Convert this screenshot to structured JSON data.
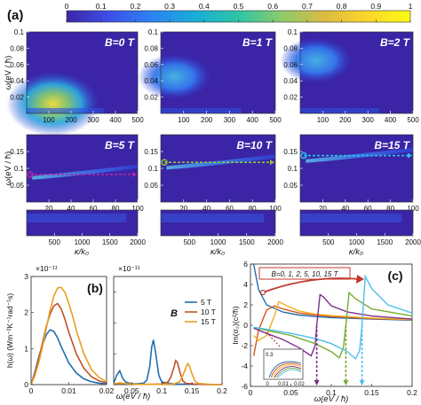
{
  "figure": {
    "panel_labels": [
      "(a)",
      "(b)",
      "(c)"
    ]
  },
  "chart_data": [
    {
      "type": "heatmap",
      "panel": "(a)",
      "colorbar": {
        "ticks": [
          "0",
          "0.1",
          "0.2",
          "0.3",
          "0.4",
          "0.5",
          "0.6",
          "0.7",
          "0.8",
          "0.9",
          "1"
        ],
        "colormap": [
          "#3d26a8",
          "#3e4fe8",
          "#2c83f2",
          "#18aed8",
          "#2ec4a4",
          "#8bcb6b",
          "#ddbb42",
          "#fbd62a",
          "#f9fb14"
        ]
      },
      "ylabel": "ω(eV / ħ)",
      "xlabel": "κ/k₀",
      "subplots": [
        {
          "label": "B=0 T",
          "xlim": [
            0,
            500
          ],
          "ylim": [
            0,
            0.1
          ],
          "xticks": [
            "100",
            "200",
            "300",
            "400",
            "500"
          ],
          "yticks": [
            "0.1",
            "0.08",
            "0.06",
            "0.04",
            "0.02"
          ],
          "peak": {
            "x": 120,
            "y": 0.012
          }
        },
        {
          "label": "B=1 T",
          "xlim": [
            0,
            500
          ],
          "ylim": [
            0,
            0.1
          ],
          "xticks": [
            "100",
            "200",
            "300",
            "400",
            "500"
          ],
          "yticks": [
            "0.1",
            "0.08",
            "0.06",
            "0.04",
            "0.02"
          ],
          "peak": {
            "x": 60,
            "y": 0.045
          }
        },
        {
          "label": "B=2 T",
          "xlim": [
            0,
            500
          ],
          "ylim": [
            0,
            0.1
          ],
          "xticks": [
            "100",
            "200",
            "300",
            "400",
            "500"
          ],
          "yticks": [
            "0.1",
            "0.08",
            "0.06",
            "0.04",
            "0.02"
          ],
          "peak": {
            "x": 70,
            "y": 0.065
          }
        },
        {
          "label": "B=5 T",
          "xlim": [
            0,
            100
          ],
          "ylim": [
            0,
            0.2
          ],
          "xticks": [
            "20",
            "40",
            "60",
            "80",
            "100"
          ],
          "yticks": [
            "0.15",
            "0.1",
            "0.05"
          ],
          "peak": {
            "x": 30,
            "y": 0.09
          },
          "marker_y": 0.082,
          "marker_color": "#b02aa8"
        },
        {
          "label": "B=10 T",
          "xlim": [
            0,
            100
          ],
          "ylim": [
            0,
            0.2
          ],
          "xticks": [
            "20",
            "40",
            "60",
            "80",
            "100"
          ],
          "yticks": [
            "0.15",
            "0.1",
            "0.05"
          ],
          "peak": {
            "x": 30,
            "y": 0.12
          },
          "marker_y": 0.118,
          "marker_color": "#8ec63f"
        },
        {
          "label": "B=15 T",
          "xlim": [
            0,
            100
          ],
          "ylim": [
            0,
            0.2
          ],
          "xticks": [
            "20",
            "40",
            "60",
            "80",
            "100"
          ],
          "yticks": [
            "0.15",
            "0.1",
            "0.05"
          ],
          "peak": {
            "x": 30,
            "y": 0.14
          },
          "marker_y": 0.138,
          "marker_color": "#29c3e8"
        },
        {
          "xlim": [
            0,
            2000
          ],
          "xticks": [
            "500",
            "1000",
            "1500",
            "2000"
          ]
        },
        {
          "xlim": [
            0,
            2000
          ],
          "xticks": [
            "500",
            "1000",
            "1500",
            "2000"
          ]
        },
        {
          "xlim": [
            0,
            2000
          ],
          "xticks": [
            "500",
            "1000",
            "1500",
            "2000"
          ]
        }
      ]
    },
    {
      "type": "line",
      "panel": "(b)",
      "ylabel": "h(ω) (Wm⁻²K⁻¹rad⁻¹s)",
      "xlabel": "ω(eV / ħ)",
      "multiplier": "×10⁻¹¹",
      "legend_title": "B",
      "left": {
        "xlim": [
          0,
          0.02
        ],
        "ylim": [
          0,
          3
        ],
        "xticks": [
          "0",
          "0.01",
          "0.02"
        ],
        "yticks": [
          "0",
          "1",
          "2",
          "3"
        ],
        "series": [
          {
            "name": "5 T",
            "color": "#1f6fb2",
            "x": [
              0,
              0.001,
              0.002,
              0.003,
              0.004,
              0.005,
              0.006,
              0.007,
              0.008,
              0.01,
              0.012,
              0.014,
              0.016,
              0.018,
              0.02
            ],
            "y": [
              0,
              0.35,
              0.75,
              1.1,
              1.38,
              1.52,
              1.48,
              1.3,
              1.05,
              0.6,
              0.32,
              0.16,
              0.08,
              0.04,
              0.02
            ]
          },
          {
            "name": "10 T",
            "color": "#c0502b",
            "x": [
              0,
              0.001,
              0.002,
              0.003,
              0.004,
              0.005,
              0.006,
              0.007,
              0.008,
              0.009,
              0.01,
              0.012,
              0.014,
              0.016,
              0.018,
              0.02
            ],
            "y": [
              0,
              0.3,
              0.7,
              1.15,
              1.6,
              1.95,
              2.18,
              2.25,
              2.1,
              1.8,
              1.45,
              0.85,
              0.45,
              0.22,
              0.1,
              0.05
            ]
          },
          {
            "name": "15 T",
            "color": "#e8a020",
            "x": [
              0,
              0.001,
              0.002,
              0.003,
              0.004,
              0.005,
              0.006,
              0.007,
              0.008,
              0.009,
              0.01,
              0.011,
              0.012,
              0.014,
              0.016,
              0.018,
              0.02
            ],
            "y": [
              0,
              0.25,
              0.6,
              1.05,
              1.55,
              2.05,
              2.45,
              2.68,
              2.7,
              2.55,
              2.25,
              1.9,
              1.5,
              0.85,
              0.42,
              0.2,
              0.08
            ]
          }
        ]
      },
      "right": {
        "xlim": [
          0.02,
          0.2
        ],
        "ylim": [
          0,
          3.5
        ],
        "xticks": [
          "0.05",
          "0.1",
          "0.15",
          "0.2"
        ],
        "yticks": [
          "0",
          "1",
          "2",
          "3"
        ],
        "series": [
          {
            "name": "5 T",
            "color": "#1f6fb2",
            "x": [
              0.02,
              0.025,
              0.03,
              0.035,
              0.04,
              0.05,
              0.06,
              0.07,
              0.075,
              0.08,
              0.083,
              0.086,
              0.09,
              0.095,
              0.1,
              0.12,
              0.15,
              0.2
            ],
            "y": [
              0.05,
              0.3,
              0.45,
              0.2,
              0.08,
              0.03,
              0.03,
              0.05,
              0.15,
              0.6,
              1.2,
              1.45,
              1.0,
              0.3,
              0.08,
              0.02,
              0.01,
              0
            ]
          },
          {
            "name": "10 T",
            "color": "#c0502b",
            "x": [
              0.02,
              0.03,
              0.04,
              0.06,
              0.08,
              0.1,
              0.11,
              0.115,
              0.12,
              0.123,
              0.126,
              0.13,
              0.135,
              0.14,
              0.16,
              0.2
            ],
            "y": [
              0.02,
              0.05,
              0.03,
              0.01,
              0.01,
              0.02,
              0.08,
              0.25,
              0.55,
              0.78,
              0.72,
              0.4,
              0.12,
              0.04,
              0.01,
              0
            ]
          },
          {
            "name": "15 T",
            "color": "#e8a020",
            "x": [
              0.02,
              0.03,
              0.04,
              0.06,
              0.08,
              0.1,
              0.12,
              0.13,
              0.135,
              0.14,
              0.143,
              0.146,
              0.15,
              0.155,
              0.16,
              0.18,
              0.2
            ],
            "y": [
              0.02,
              0.06,
              0.03,
              0.01,
              0.01,
              0.01,
              0.02,
              0.1,
              0.3,
              0.55,
              0.68,
              0.6,
              0.35,
              0.12,
              0.04,
              0.01,
              0
            ]
          }
        ]
      }
    },
    {
      "type": "line",
      "panel": "(c)",
      "ylabel": "Im(σ₂)(c²/ħ)",
      "xlabel": "ω(eV / ħ)",
      "xlim": [
        0,
        0.2
      ],
      "ylim": [
        -6,
        6
      ],
      "xticks": [
        "0",
        "0.05",
        "0.1",
        "0.15",
        "0.2"
      ],
      "yticks": [
        "6",
        "4",
        "2",
        "0",
        "-2",
        "-4",
        "-6"
      ],
      "annotation": "B=0, 1, 2, 5, 10, 15 T",
      "inset": {
        "ytick": "0.3",
        "xticks": [
          "0",
          "0.01",
          "0.02"
        ]
      },
      "marker_x": [
        0.082,
        0.118,
        0.138
      ],
      "series": [
        {
          "name": "0 T",
          "color": "#1f6fb2",
          "x": [
            0.004,
            0.01,
            0.02,
            0.04,
            0.06,
            0.08,
            0.1,
            0.15,
            0.2
          ],
          "y": [
            6,
            3.5,
            2.0,
            1.3,
            1.0,
            0.85,
            0.75,
            0.6,
            0.5
          ]
        },
        {
          "name": "1 T",
          "color": "#d9531e",
          "x": [
            0.004,
            0.01,
            0.02,
            0.03,
            0.04,
            0.06,
            0.08,
            0.1,
            0.15,
            0.2
          ],
          "y": [
            -3,
            -0.5,
            1.5,
            1.9,
            1.6,
            1.2,
            1.0,
            0.85,
            0.65,
            0.55
          ]
        },
        {
          "name": "2 T",
          "color": "#edb120",
          "x": [
            0.004,
            0.01,
            0.02,
            0.03,
            0.035,
            0.045,
            0.06,
            0.08,
            0.1,
            0.15,
            0.2
          ],
          "y": [
            -1.0,
            -1.5,
            -1.0,
            1.0,
            2.3,
            1.9,
            1.4,
            1.1,
            0.95,
            0.7,
            0.55
          ]
        },
        {
          "name": "5 T",
          "color": "#7e2f8e",
          "x": [
            0.004,
            0.02,
            0.04,
            0.06,
            0.075,
            0.08,
            0.082,
            0.086,
            0.09,
            0.1,
            0.12,
            0.15,
            0.2
          ],
          "y": [
            -0.3,
            -0.8,
            -1.4,
            -2.2,
            -3.0,
            -2.0,
            0.0,
            3.0,
            2.8,
            1.9,
            1.3,
            0.9,
            0.6
          ]
        },
        {
          "name": "10 T",
          "color": "#77ac30",
          "x": [
            0.004,
            0.02,
            0.05,
            0.08,
            0.1,
            0.11,
            0.115,
            0.118,
            0.122,
            0.13,
            0.15,
            0.2
          ],
          "y": [
            -0.2,
            -0.5,
            -1.0,
            -1.8,
            -2.6,
            -3.2,
            -2.2,
            0.0,
            3.2,
            2.6,
            1.6,
            0.9
          ]
        },
        {
          "name": "15 T",
          "color": "#4dbeee",
          "x": [
            0.004,
            0.02,
            0.05,
            0.08,
            0.1,
            0.12,
            0.13,
            0.135,
            0.138,
            0.142,
            0.15,
            0.17,
            0.2
          ],
          "y": [
            -0.2,
            -0.4,
            -0.8,
            -1.3,
            -1.8,
            -2.6,
            -3.3,
            -2.5,
            0.0,
            4.8,
            3.6,
            2.0,
            1.2
          ]
        }
      ]
    }
  ]
}
